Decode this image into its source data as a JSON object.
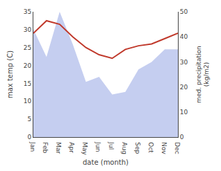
{
  "chart_data": {
    "type": "line",
    "categories": [
      "Jan",
      "Feb",
      "Mar",
      "Apr",
      "May",
      "Jun",
      "Jul",
      "Aug",
      "Sep",
      "Oct",
      "Nov",
      "Dec"
    ],
    "series": [
      {
        "type": "area",
        "color": "#c5cef0",
        "axis": "y2",
        "values": [
          43,
          32,
          50,
          37,
          22,
          24,
          17,
          18,
          27,
          30,
          35,
          35
        ]
      },
      {
        "type": "line",
        "color": "#c0392b",
        "values": [
          29.0,
          32.5,
          31.5,
          28.0,
          25.0,
          23.0,
          22.0,
          24.5,
          25.5,
          26.0,
          27.5,
          29.0
        ]
      }
    ],
    "xlabel": "date (month)",
    "ylabel": "max temp (C)",
    "y2label": "med. precipitation\n(kg/m2)",
    "ylim": [
      0,
      35
    ],
    "yticks": [
      0,
      5,
      10,
      15,
      20,
      25,
      30,
      35
    ],
    "y2lim": [
      0,
      50
    ],
    "y2ticks": [
      0,
      10,
      20,
      30,
      40,
      50
    ],
    "grid": false
  }
}
